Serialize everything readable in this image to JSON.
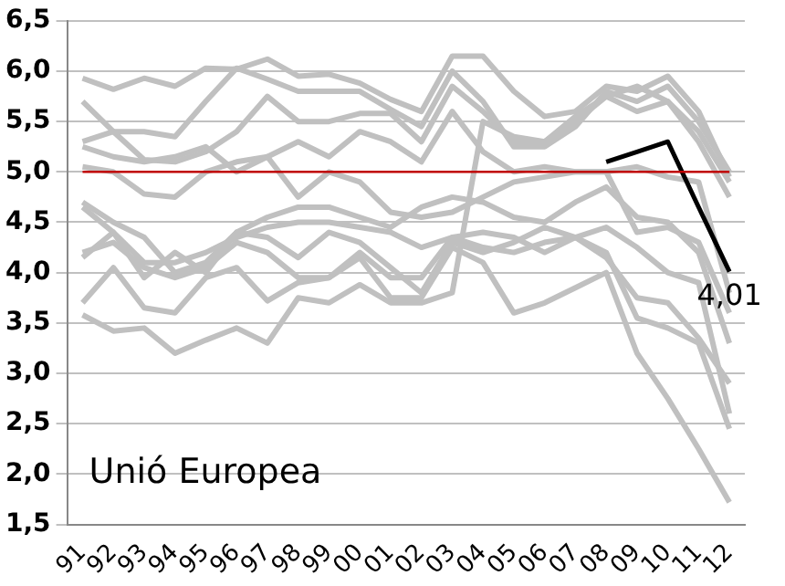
{
  "chart_data": {
    "type": "line",
    "categories": [
      "91",
      "92",
      "93",
      "94",
      "95",
      "96",
      "97",
      "98",
      "99",
      "00",
      "01",
      "02",
      "03",
      "04",
      "05",
      "06",
      "07",
      "08",
      "09",
      "10",
      "11",
      "12"
    ],
    "series": [
      {
        "color": "#c0c0c0",
        "values": [
          5.93,
          5.82,
          5.93,
          5.85,
          6.03,
          6.02,
          6.12,
          5.95,
          5.97,
          5.88,
          5.72,
          5.6,
          6.15,
          6.15,
          5.8,
          5.55,
          5.6,
          5.85,
          5.8,
          5.95,
          5.6,
          4.95
        ]
      },
      {
        "color": "#c0c0c0",
        "values": [
          5.7,
          5.4,
          5.12,
          5.1,
          5.2,
          5.4,
          5.75,
          5.5,
          5.5,
          5.58,
          5.58,
          5.3,
          5.85,
          5.6,
          5.3,
          5.3,
          5.55,
          5.75,
          5.85,
          5.7,
          5.3,
          4.75
        ]
      },
      {
        "color": "#c0c0c0",
        "values": [
          5.3,
          5.4,
          5.4,
          5.35,
          5.7,
          6.03,
          5.92,
          5.8,
          5.8,
          5.8,
          5.62,
          5.45,
          6.0,
          5.7,
          5.25,
          5.25,
          5.45,
          5.8,
          5.7,
          5.85,
          5.5,
          5.0
        ]
      },
      {
        "color": "#c0c0c0",
        "values": [
          5.25,
          5.15,
          5.1,
          5.15,
          5.25,
          5.0,
          5.15,
          5.3,
          5.15,
          5.4,
          5.3,
          5.1,
          5.6,
          5.2,
          5.0,
          5.05,
          5.0,
          5.0,
          5.05,
          4.95,
          4.9,
          3.8
        ]
      },
      {
        "color": "#c0c0c0",
        "values": [
          5.05,
          5.0,
          4.78,
          4.75,
          5.0,
          5.1,
          5.15,
          4.75,
          5.0,
          4.9,
          4.6,
          4.55,
          4.6,
          4.75,
          4.9,
          4.95,
          5.0,
          5.0,
          4.4,
          4.45,
          4.3,
          3.6
        ]
      },
      {
        "color": "#c0c0c0",
        "values": [
          4.7,
          4.5,
          4.35,
          4.0,
          4.1,
          4.4,
          4.55,
          4.65,
          4.65,
          4.55,
          4.45,
          4.65,
          4.75,
          4.7,
          4.55,
          4.5,
          4.7,
          4.85,
          4.55,
          4.5,
          4.2,
          3.3
        ]
      },
      {
        "color": "#c0c0c0",
        "values": [
          4.65,
          4.4,
          4.1,
          4.1,
          4.2,
          4.35,
          4.45,
          4.5,
          4.5,
          4.45,
          4.4,
          4.25,
          4.35,
          4.4,
          4.35,
          4.2,
          4.35,
          4.45,
          4.25,
          4.0,
          3.9,
          2.6
        ]
      },
      {
        "color": "#c0c0c0",
        "values": [
          4.15,
          4.4,
          3.95,
          4.2,
          4.0,
          4.4,
          4.35,
          4.15,
          4.4,
          4.3,
          4.05,
          3.8,
          4.3,
          4.2,
          4.3,
          4.45,
          4.35,
          4.2,
          3.55,
          3.45,
          3.3,
          2.45
        ]
      },
      {
        "color": "#c0c0c0",
        "values": [
          4.2,
          4.3,
          4.05,
          3.95,
          4.05,
          4.3,
          4.2,
          3.95,
          3.95,
          4.2,
          3.95,
          3.95,
          4.35,
          4.25,
          4.2,
          4.3,
          4.35,
          4.15,
          3.75,
          3.7,
          3.35,
          2.9
        ]
      },
      {
        "color": "#c0c0c0",
        "values": [
          3.7,
          4.05,
          3.65,
          3.6,
          3.95,
          4.05,
          3.72,
          3.9,
          3.95,
          4.15,
          3.75,
          3.75,
          4.25,
          4.1,
          3.6,
          3.7,
          3.85,
          4.0,
          3.2,
          2.75,
          2.25,
          1.72
        ]
      },
      {
        "color": "#c0c0c0",
        "values": [
          3.58,
          3.42,
          3.45,
          3.2,
          3.33,
          3.45,
          3.3,
          3.75,
          3.7,
          3.88,
          3.7,
          3.7,
          3.8,
          5.5,
          5.35,
          5.3,
          5.5,
          5.75,
          5.6,
          5.7,
          5.4,
          4.9
        ]
      },
      {
        "color": "#000000",
        "values": [
          null,
          null,
          null,
          null,
          null,
          null,
          null,
          null,
          null,
          null,
          null,
          null,
          null,
          null,
          null,
          null,
          null,
          5.1,
          5.2,
          5.3,
          4.65,
          4.01
        ],
        "value_labels": [
          null,
          null,
          null,
          null,
          null,
          null,
          null,
          null,
          null,
          null,
          null,
          null,
          null,
          null,
          null,
          null,
          null,
          null,
          null,
          null,
          null,
          "4,01"
        ]
      }
    ],
    "ylim": [
      1.5,
      6.5
    ],
    "yticks": [
      {
        "value": 1.5,
        "label": "1,5"
      },
      {
        "value": 2,
        "label": "2,0"
      },
      {
        "value": 2.5,
        "label": "2,5"
      },
      {
        "value": 3,
        "label": "3,0"
      },
      {
        "value": 3.5,
        "label": "3,5"
      },
      {
        "value": 4,
        "label": "4,0"
      },
      {
        "value": 4.5,
        "label": "4,5"
      },
      {
        "value": 5,
        "label": "5,0"
      },
      {
        "value": 5.5,
        "label": "5,5"
      },
      {
        "value": 6,
        "label": "6,0"
      },
      {
        "value": 6.5,
        "label": "6,5"
      }
    ],
    "grid": "y",
    "legend": false,
    "marker": "none",
    "line_style": "solid",
    "ref_lines": [
      {
        "axis": "y",
        "value": 5,
        "color": "#c00000"
      }
    ],
    "annotations": [
      "Unió Europea"
    ]
  }
}
